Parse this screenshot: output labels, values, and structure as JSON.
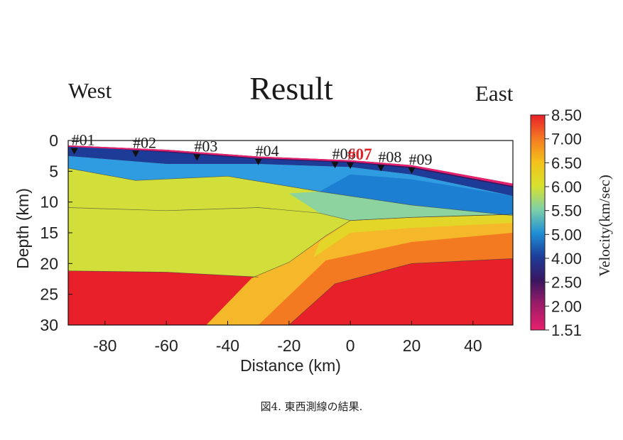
{
  "chart_data": {
    "type": "heatmap",
    "title": "Result",
    "direction_labels": {
      "west": "West",
      "east": "East"
    },
    "xlabel": "Distance (km)",
    "ylabel": "Depth (km)",
    "xlim": [
      -92,
      53
    ],
    "ylim": [
      30,
      0
    ],
    "x_ticks": [
      -80,
      -60,
      -40,
      -20,
      0,
      20,
      40
    ],
    "y_ticks": [
      0,
      5,
      10,
      15,
      20,
      25,
      30
    ],
    "colorbar": {
      "label": "Velocity(km/sec)",
      "ticks": [
        "8.50",
        "7.00",
        "6.50",
        "6.00",
        "5.50",
        "5.00",
        "4.00",
        "2.50",
        "2.00",
        "1.51"
      ],
      "colors": [
        "#e8202a",
        "#f47a22",
        "#f3c21c",
        "#d7e22e",
        "#7ed0a8",
        "#1e8fd6",
        "#1d3c98",
        "#3a1660",
        "#9c1c68",
        "#e8206e"
      ]
    },
    "stations": [
      {
        "label": "#01",
        "x": -90,
        "highlight": false
      },
      {
        "label": "#02",
        "x": -70,
        "highlight": false
      },
      {
        "label": "#03",
        "x": -50,
        "highlight": false
      },
      {
        "label": "#04",
        "x": -30,
        "highlight": false
      },
      {
        "label": "#06",
        "x": -5,
        "highlight": false
      },
      {
        "label": "#07",
        "x": 0,
        "highlight": true
      },
      {
        "label": "#08",
        "x": 10,
        "highlight": false
      },
      {
        "label": "#09",
        "x": 20,
        "highlight": false
      }
    ],
    "boundaries": {
      "top_surface": [
        [
          -92,
          0.8
        ],
        [
          -60,
          1.5
        ],
        [
          -30,
          2.6
        ],
        [
          0,
          3.2
        ],
        [
          20,
          4.0
        ],
        [
          53,
          7.0
        ]
      ],
      "low_layer_base": [
        [
          -92,
          2.5
        ],
        [
          -60,
          3.8
        ],
        [
          -30,
          3.8
        ],
        [
          0,
          4.3
        ],
        [
          20,
          5.5
        ],
        [
          53,
          9.0
        ]
      ],
      "upper_crust_base": [
        [
          -92,
          4.5
        ],
        [
          -70,
          6.5
        ],
        [
          -40,
          5.8
        ],
        [
          -10,
          8.3
        ],
        [
          20,
          10.5
        ],
        [
          53,
          12.2
        ]
      ],
      "mid_crust_top": [
        [
          -92,
          10.9
        ],
        [
          -60,
          11.4
        ],
        [
          -30,
          10.9
        ],
        [
          -10,
          11.8
        ],
        [
          0,
          13.0
        ],
        [
          20,
          12.5
        ],
        [
          53,
          12.0
        ]
      ],
      "lower_crust_top": [
        [
          -92,
          21.2
        ],
        [
          -60,
          21.4
        ],
        [
          -30,
          22.2
        ]
      ],
      "slab_upper": [
        [
          -32,
          22.3
        ],
        [
          -20,
          19.8
        ],
        [
          -8,
          15.5
        ],
        [
          0,
          13.0
        ],
        [
          20,
          12.5
        ],
        [
          53,
          12.0
        ]
      ],
      "mantle_top": [
        [
          -20,
          30
        ],
        [
          -5,
          23.3
        ],
        [
          20,
          20.0
        ],
        [
          53,
          19.2
        ]
      ],
      "slab_lower": [
        [
          -47,
          30
        ],
        [
          -10,
          18.0
        ],
        [
          10,
          15.8
        ],
        [
          53,
          13.5
        ]
      ]
    }
  },
  "caption": "図4. 東西測線の結果."
}
